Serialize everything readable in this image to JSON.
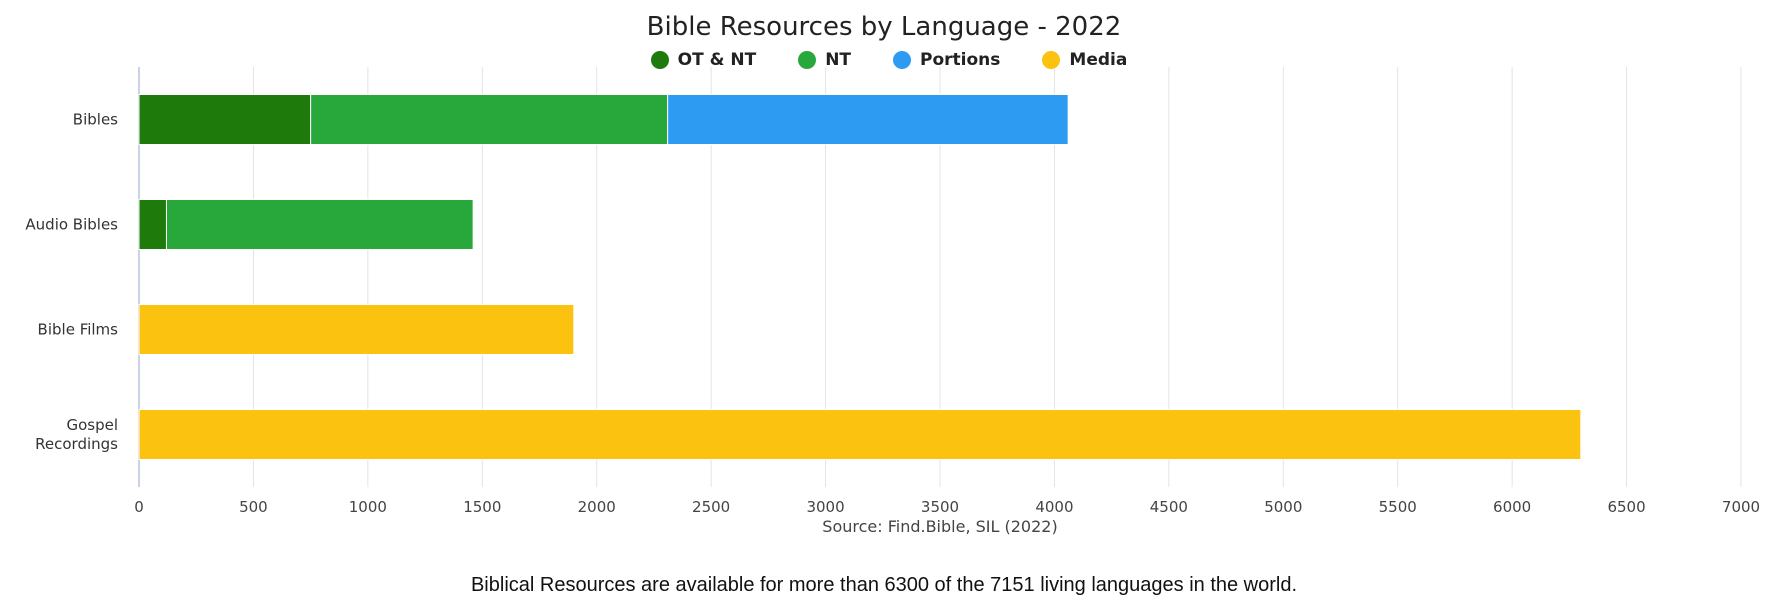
{
  "chart_data": {
    "type": "bar",
    "orientation": "horizontal",
    "stacked": true,
    "title": "Bible Resources by Language - 2022",
    "xlabel": "Source: Find.Bible, SIL (2022)",
    "ylabel": "",
    "categories": [
      "Bibles",
      "Audio Bibles",
      "Bible Films",
      "Gospel\nRecordings"
    ],
    "series": [
      {
        "name": "OT & NT",
        "color": "#1e7a0a",
        "values": [
          750,
          120,
          0,
          0
        ]
      },
      {
        "name": "NT",
        "color": "#28a83b",
        "values": [
          1560,
          1340,
          0,
          0
        ]
      },
      {
        "name": "Portions",
        "color": "#2e9bf3",
        "values": [
          1750,
          0,
          0,
          0
        ]
      },
      {
        "name": "Media",
        "color": "#fbc20f",
        "values": [
          0,
          0,
          1900,
          6300
        ]
      }
    ],
    "xlim": [
      0,
      7000
    ],
    "xticks": [
      0,
      500,
      1000,
      1500,
      2000,
      2500,
      3000,
      3500,
      4000,
      4500,
      5000,
      5500,
      6000,
      6500,
      7000
    ],
    "grid": true,
    "legend_position": "top-center"
  },
  "footnote": "Biblical Resources are available for more than 6300 of the 7151 living languages in the world."
}
